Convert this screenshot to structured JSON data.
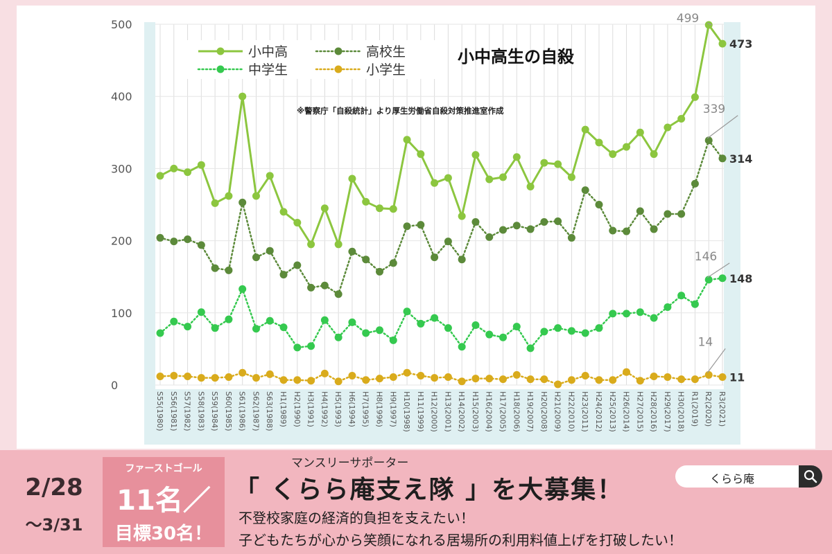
{
  "colors": {
    "page_background": "#f8dfe3",
    "plot_background": "#dff0f2",
    "total": "#8cc63f",
    "high_school": "#5c8a3a",
    "junior_high": "#35c94f",
    "elementary": "#d9ab1c",
    "banner": "#f2b6bf",
    "goal_box": "#e7909c"
  },
  "chart_data": {
    "type": "line",
    "title": "小中高生の自殺",
    "subtitle": "※警察庁「自殺統計」より厚生労働省自殺対策推進室作成",
    "xlabel": "",
    "ylabel": "",
    "ylim": [
      0,
      500
    ],
    "yticks": [
      "0",
      "100",
      "200",
      "300",
      "400",
      "500"
    ],
    "grid": true,
    "legend_position": "top-left",
    "categories": [
      "S55(1980)",
      "S56(1981)",
      "S57(1982)",
      "S58(1983)",
      "S59(1984)",
      "S60(1985)",
      "S61(1986)",
      "S62(1987)",
      "S63(1988)",
      "H1(1989)",
      "H2(1990)",
      "H3(1991)",
      "H4(1992)",
      "H5(1993)",
      "H6(1994)",
      "H7(1995)",
      "H8(1996)",
      "H9(1997)",
      "H10(1998)",
      "H11(1999)",
      "H12(2000)",
      "H13(2001)",
      "H14(2002)",
      "H15(2003)",
      "H16(2004)",
      "H17(2005)",
      "H18(2006)",
      "H19(2007)",
      "H20(2008)",
      "H21(2009)",
      "H22(2010)",
      "H23(2011)",
      "H24(2012)",
      "H25(2013)",
      "H26(2014)",
      "H27(2015)",
      "H28(2016)",
      "H29(2017)",
      "H30(2018)",
      "R1(2019)",
      "R2(2020)",
      "R3(2021)"
    ],
    "series": [
      {
        "name": "小中高",
        "style": "solid",
        "color": "#8cc63f",
        "values": [
          290,
          300,
          295,
          305,
          252,
          262,
          400,
          262,
          290,
          240,
          225,
          195,
          245,
          195,
          286,
          254,
          245,
          244,
          340,
          320,
          280,
          287,
          234,
          319,
          285,
          288,
          316,
          275,
          308,
          306,
          288,
          354,
          336,
          320,
          330,
          350,
          320,
          357,
          369,
          399,
          499,
          473
        ]
      },
      {
        "name": "高校生",
        "style": "dotted",
        "color": "#5c8a3a",
        "values": [
          204,
          199,
          202,
          194,
          162,
          159,
          253,
          177,
          186,
          153,
          166,
          135,
          138,
          126,
          185,
          174,
          157,
          169,
          220,
          222,
          177,
          199,
          174,
          226,
          205,
          215,
          221,
          216,
          226,
          227,
          204,
          270,
          250,
          214,
          213,
          241,
          216,
          237,
          237,
          279,
          339,
          314
        ]
      },
      {
        "name": "中学生",
        "style": "dotted",
        "color": "#35c94f",
        "values": [
          72,
          88,
          81,
          101,
          79,
          91,
          133,
          78,
          89,
          80,
          52,
          54,
          90,
          66,
          87,
          72,
          76,
          62,
          102,
          85,
          93,
          79,
          53,
          83,
          70,
          66,
          81,
          51,
          74,
          79,
          75,
          72,
          79,
          99,
          99,
          101,
          93,
          108,
          124,
          112,
          146,
          148
        ]
      },
      {
        "name": "小学生",
        "style": "dotted",
        "color": "#d9ab1c",
        "values": [
          12,
          13,
          12,
          10,
          10,
          11,
          17,
          10,
          15,
          7,
          7,
          6,
          16,
          5,
          13,
          7,
          9,
          11,
          17,
          13,
          10,
          11,
          5,
          9,
          9,
          8,
          14,
          8,
          8,
          1,
          7,
          13,
          7,
          7,
          18,
          6,
          12,
          11,
          8,
          8,
          14,
          11
        ]
      }
    ],
    "annotations": {
      "total_2020": "499",
      "total_2021": "473",
      "high_2020": "339",
      "high_2021": "314",
      "junior_2020": "146",
      "junior_2021": "148",
      "elem_2020": "14",
      "elem_2021": "11"
    }
  },
  "banner": {
    "date_start": "2/28",
    "date_end": "～3/31",
    "goal_label": "ファーストゴール",
    "goal_count": "11名／",
    "goal_target": "目標30名！",
    "campaign_subtitle": "マンスリーサポーター",
    "campaign_title": "「 くらら庵支え隊 」を大募集！",
    "campaign_line1": "不登校家庭の経済的負担を支えたい！",
    "campaign_line2": "子どもたちが心から笑顔になれる居場所の利用料値上げを打破したい！"
  },
  "search": {
    "value": "くらら庵",
    "icon": "search-icon"
  }
}
